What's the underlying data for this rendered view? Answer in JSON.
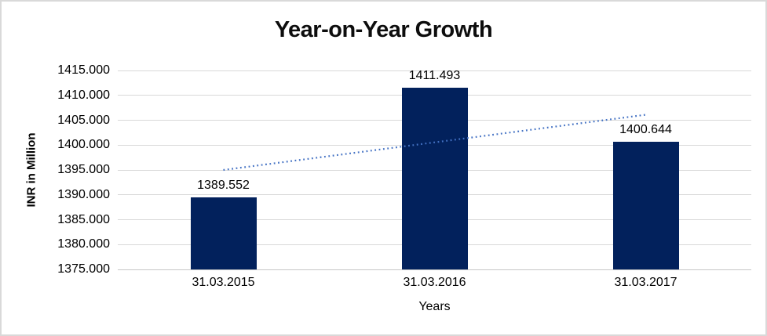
{
  "chart_data": {
    "type": "bar",
    "title": "Year-on-Year Growth",
    "xlabel": "Years",
    "ylabel": "INR in Million",
    "categories": [
      "31.03.2015",
      "31.03.2016",
      "31.03.2017"
    ],
    "values": [
      1389.552,
      1411.493,
      1400.644
    ],
    "value_labels": [
      "1389.552",
      "1411.493",
      "1400.644"
    ],
    "ylim": [
      1375,
      1415
    ],
    "ytick_step": 5,
    "ytick_labels": [
      "1415.000",
      "1410.000",
      "1405.000",
      "1400.000",
      "1395.000",
      "1390.000",
      "1385.000",
      "1380.000",
      "1375.000"
    ],
    "grid": true,
    "legend": "none",
    "trendline": {
      "type": "linear",
      "style": "dotted",
      "start_value": 1395.0,
      "end_value": 1406.1
    },
    "colors": {
      "bar": "#02215c",
      "trendline": "#4472c4",
      "gridline": "#d9d9d9",
      "axis_line": "#c6c6c6",
      "text": "#000000",
      "frame_border": "#d9d9d9",
      "background": "#ffffff"
    }
  }
}
